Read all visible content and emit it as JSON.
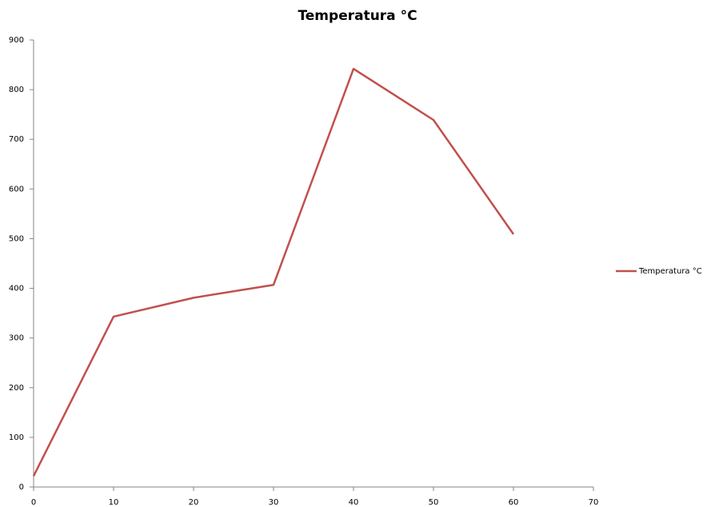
{
  "chart_data": {
    "type": "line",
    "title": "Temperatura °C",
    "x": [
      0,
      10,
      20,
      30,
      40,
      50,
      60
    ],
    "series": [
      {
        "name": "Temperatura °C",
        "color": "#c0504d",
        "values": [
          22,
          343,
          381,
          407,
          842,
          739,
          509
        ]
      }
    ],
    "xlim": [
      0,
      70
    ],
    "xticks": [
      0,
      10,
      20,
      30,
      40,
      50,
      60,
      70
    ],
    "ylim": [
      0,
      900
    ],
    "yticks": [
      0,
      100,
      200,
      300,
      400,
      500,
      600,
      700,
      800,
      900
    ],
    "grid": false,
    "legend": "right"
  }
}
